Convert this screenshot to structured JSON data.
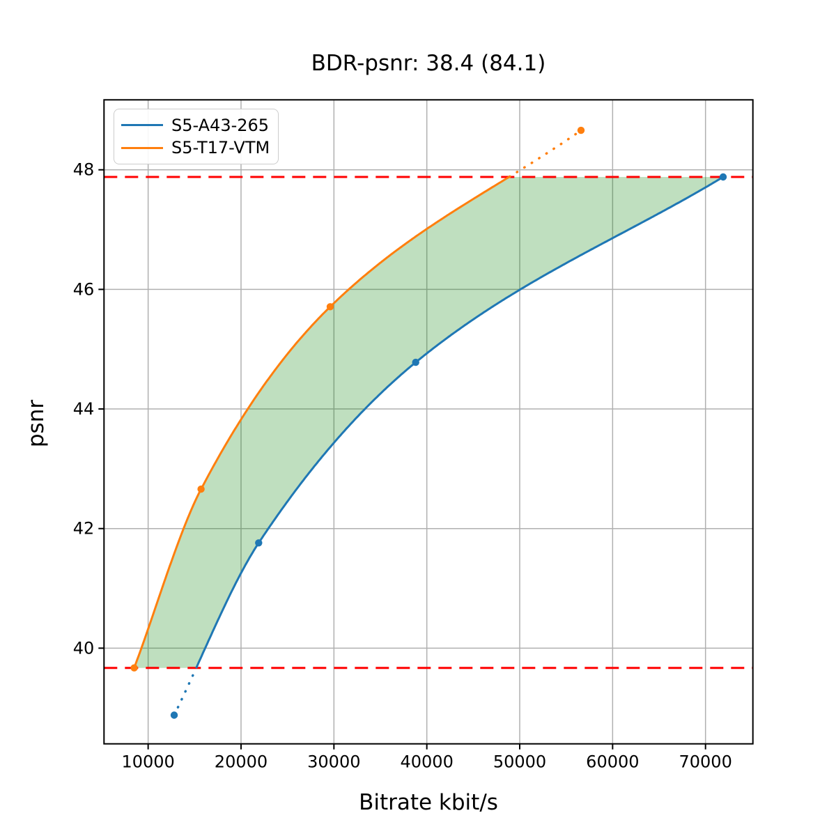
{
  "title": "BDR-psnr: 38.4 (84.1)",
  "chart_data": {
    "type": "line",
    "title": "BDR-psnr: 38.4 (84.1)",
    "xlabel": "Bitrate kbit/s",
    "ylabel": "psnr",
    "xlim": [
      5250,
      75100
    ],
    "ylim": [
      38.4,
      49.17
    ],
    "x_ticks": [
      10000,
      20000,
      30000,
      40000,
      50000,
      60000,
      70000
    ],
    "y_ticks": [
      40,
      42,
      44,
      46,
      48
    ],
    "grid": true,
    "legend_position": "upper left",
    "series": [
      {
        "name": "S5-A43-265",
        "color": "#1f77b4",
        "points": [
          [
            12800,
            38.88
          ],
          [
            21900,
            41.76
          ],
          [
            38800,
            44.78
          ],
          [
            71900,
            47.88
          ]
        ],
        "style_note": "solid inside overlap range, dotted outside"
      },
      {
        "name": "S5-T17-VTM",
        "color": "#ff7f0e",
        "points": [
          [
            8500,
            39.67
          ],
          [
            15700,
            42.66
          ],
          [
            29600,
            45.71
          ],
          [
            56600,
            48.66
          ]
        ],
        "style_note": "solid inside overlap range, dotted outside"
      }
    ],
    "reference_lines": {
      "color": "#ff0000",
      "style": "dashed",
      "values": [
        39.67,
        47.88
      ]
    },
    "fill_between": {
      "color": "rgba(0,128,0,0.25)",
      "y_range": [
        39.67,
        47.88
      ],
      "description": "green shaded area between the two rate-distortion curves within psnr overlap"
    },
    "colors": {
      "grid": "#b0b0b0",
      "spine": "#000000",
      "fill": "rgba(0,128,0,0.25)"
    }
  },
  "legend": {
    "items": [
      {
        "label": "S5-A43-265",
        "color": "#1f77b4"
      },
      {
        "label": "S5-T17-VTM",
        "color": "#ff7f0e"
      }
    ]
  }
}
